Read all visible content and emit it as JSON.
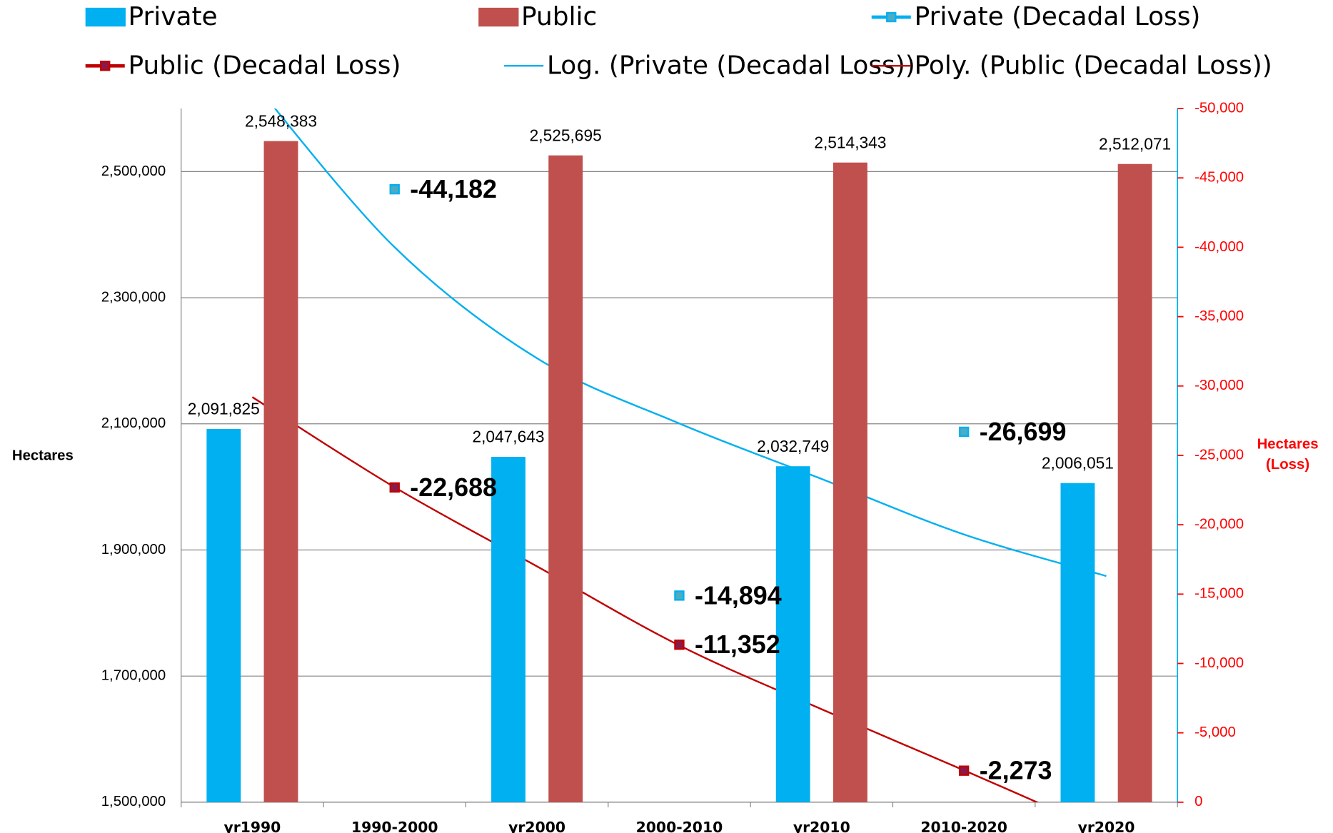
{
  "chart_data": {
    "type": "combo",
    "ylabel": "Hectares",
    "y2label": "Hectares (Loss)",
    "categories": [
      "yr1990",
      "1990-2000",
      "yr2000",
      "2000-2010",
      "yr2010",
      "2010-2020",
      "yr2020"
    ],
    "ylim": [
      1500000,
      2600000
    ],
    "yticks": [
      {
        "value": 1500000,
        "label": "1,500,000"
      },
      {
        "value": 1700000,
        "label": "1,700,000"
      },
      {
        "value": 1900000,
        "label": "1,900,000"
      },
      {
        "value": 2100000,
        "label": "2,100,000"
      },
      {
        "value": 2300000,
        "label": "2,300,000"
      },
      {
        "value": 2500000,
        "label": "2,500,000"
      }
    ],
    "y2lim": [
      0,
      -50000
    ],
    "y2ticks": [
      0,
      {
        "value": -5000,
        "label": "-5,000"
      },
      {
        "value": -10000,
        "label": "-10,000"
      },
      {
        "value": -15000,
        "label": "-15,000"
      },
      {
        "value": -20000,
        "label": "-20,000"
      },
      {
        "value": -25000,
        "label": "-25,000"
      },
      {
        "value": -30000,
        "label": "-30,000"
      },
      {
        "value": -35000,
        "label": "-35,000"
      },
      {
        "value": -40000,
        "label": "-40,000"
      },
      {
        "value": -45000,
        "label": "-45,000"
      },
      {
        "value": -50000,
        "label": "-50,000"
      }
    ],
    "grid": true,
    "legend": "top",
    "series": [
      {
        "name": "Private",
        "type": "bar",
        "color": "#00b0f0",
        "values": [
          2091825,
          null,
          2047643,
          null,
          2032749,
          null,
          2006051
        ],
        "value_labels": [
          "2,091,825",
          null,
          "2,047,643",
          null,
          "2,032,749",
          null,
          "2,006,051"
        ]
      },
      {
        "name": "Public",
        "type": "bar",
        "color": "#c0504d",
        "values": [
          2548383,
          null,
          2525695,
          null,
          2514343,
          null,
          2512071
        ],
        "value_labels": [
          "2,548,383",
          null,
          "2,525,695",
          null,
          "2,514,343",
          null,
          "2,512,071"
        ]
      },
      {
        "name": "Private (Decadal Loss)",
        "type": "marker",
        "axis": "y2",
        "color": "#00b0f0",
        "marker_color": "#4bacc6",
        "values": [
          null,
          -44182,
          null,
          -14894,
          null,
          -26699,
          null
        ],
        "value_labels": [
          null,
          "-44,182",
          null,
          "-14,894",
          null,
          "-26,699",
          null
        ]
      },
      {
        "name": "Public (Decadal Loss)",
        "type": "marker",
        "axis": "y2",
        "color": "#c00000",
        "marker_color": "#8b1a4a",
        "values": [
          null,
          -22688,
          null,
          -11352,
          null,
          -2273,
          null
        ],
        "value_labels": [
          null,
          "-22,688",
          null,
          "-11,352",
          null,
          "-2,273",
          null
        ]
      },
      {
        "name": "Log. (Private (Decadal Loss))",
        "type": "line",
        "axis": "y2",
        "color": "#00b0f0",
        "values": [
          -52000,
          -40000,
          -32000,
          -27300,
          -23300,
          -19300,
          -16300
        ]
      },
      {
        "name": "Poly. (Public (Decadal Loss))",
        "type": "line",
        "axis": "y2",
        "color": "#c00000",
        "values": [
          -29200,
          -22700,
          -17000,
          -11300,
          -6700,
          -2300,
          2200
        ]
      }
    ]
  }
}
